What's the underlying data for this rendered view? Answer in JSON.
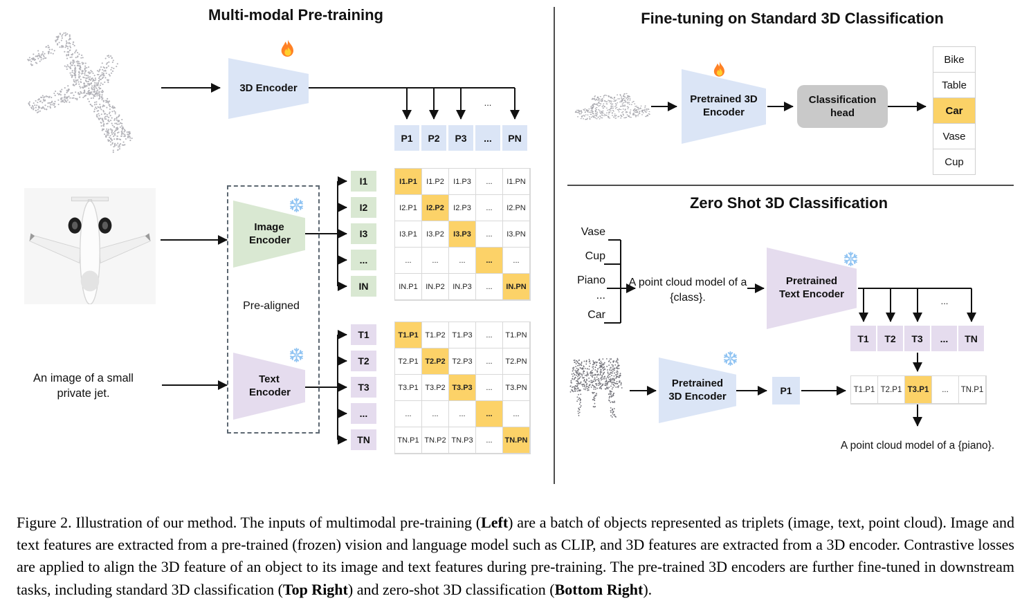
{
  "pretrain": {
    "title": "Multi-modal Pre-training",
    "encoder_3d_label": "3D Encoder",
    "image_encoder_label": "Image Encoder",
    "text_encoder_label": "Text Encoder",
    "prealigned_label": "Pre-aligned",
    "text_input": "An image of a small private jet.",
    "ellipsis": "...",
    "p_row": [
      "P1",
      "P2",
      "P3",
      "...",
      "PN"
    ],
    "i_col": [
      "I1",
      "I2",
      "I3",
      "...",
      "IN"
    ],
    "t_col": [
      "T1",
      "T2",
      "T3",
      "...",
      "TN"
    ],
    "i_matrix": [
      [
        "I1.P1",
        "I1.P2",
        "I1.P3",
        "...",
        "I1.PN"
      ],
      [
        "I2.P1",
        "I2.P2",
        "I2.P3",
        "...",
        "I2.PN"
      ],
      [
        "I3.P1",
        "I3.P2",
        "I3.P3",
        "...",
        "I3.PN"
      ],
      [
        "...",
        "...",
        "...",
        "...",
        "..."
      ],
      [
        "IN.P1",
        "IN.P2",
        "IN.P3",
        "...",
        "IN.PN"
      ]
    ],
    "t_matrix": [
      [
        "T1.P1",
        "T1.P2",
        "T1.P3",
        "...",
        "T1.PN"
      ],
      [
        "T2.P1",
        "T2.P2",
        "T2.P3",
        "...",
        "T2.PN"
      ],
      [
        "T3.P1",
        "T3.P2",
        "T3.P3",
        "...",
        "T3.PN"
      ],
      [
        "...",
        "...",
        "...",
        "...",
        "..."
      ],
      [
        "TN.P1",
        "TN.P2",
        "TN.P3",
        "...",
        "TN.PN"
      ]
    ]
  },
  "finetune": {
    "title": "Fine-tuning on Standard 3D Classification",
    "encoder_label": "Pretrained 3D Encoder",
    "head_label": "Classification head",
    "classes": [
      "Bike",
      "Table",
      "Car",
      "Vase",
      "Cup"
    ],
    "highlighted_class": "Car"
  },
  "zeroshot": {
    "title": "Zero Shot 3D Classification",
    "class_prompts": [
      "Vase",
      "Cup",
      "Piano",
      "...",
      "Car"
    ],
    "prompt_text": "A point cloud model of a {class}.",
    "text_encoder_label": "Pretrained Text Encoder",
    "encoder_3d_label": "Pretrained 3D Encoder",
    "t_row": [
      "T1",
      "T2",
      "T3",
      "...",
      "TN"
    ],
    "p_cell": "P1",
    "sim_row": [
      "T1.P1",
      "T2.P1",
      "T3.P1",
      "...",
      "TN.P1"
    ],
    "sim_highlight_index": 2,
    "result_text": "A point cloud model of a {piano}.",
    "ellipsis": "..."
  },
  "caption": {
    "segments": [
      {
        "text": "Figure 2. Illustration of our method.  The inputs of multimodal pre-training (",
        "bold": false
      },
      {
        "text": "Left",
        "bold": true
      },
      {
        "text": ") are a batch of objects represented as triplets (image, text, point cloud).  Image and text features are extracted from a pre-trained (frozen) vision and language model such as CLIP, and 3D features are extracted from a 3D encoder.  Contrastive losses are applied to align the 3D feature of an object to its image and text features during pre-training.  The pre-trained 3D encoders are further fine-tuned in downstream tasks, including standard 3D classification (",
        "bold": false
      },
      {
        "text": "Top Right",
        "bold": true
      },
      {
        "text": ") and zero-shot 3D classification (",
        "bold": false
      },
      {
        "text": "Bottom Right",
        "bold": true
      },
      {
        "text": ").",
        "bold": false
      }
    ]
  },
  "colors": {
    "blue": "#dbe5f6",
    "green": "#d9e8d2",
    "purple": "#e5dcee",
    "highlight": "#fcd268",
    "head_gray": "#c9c9c9"
  }
}
